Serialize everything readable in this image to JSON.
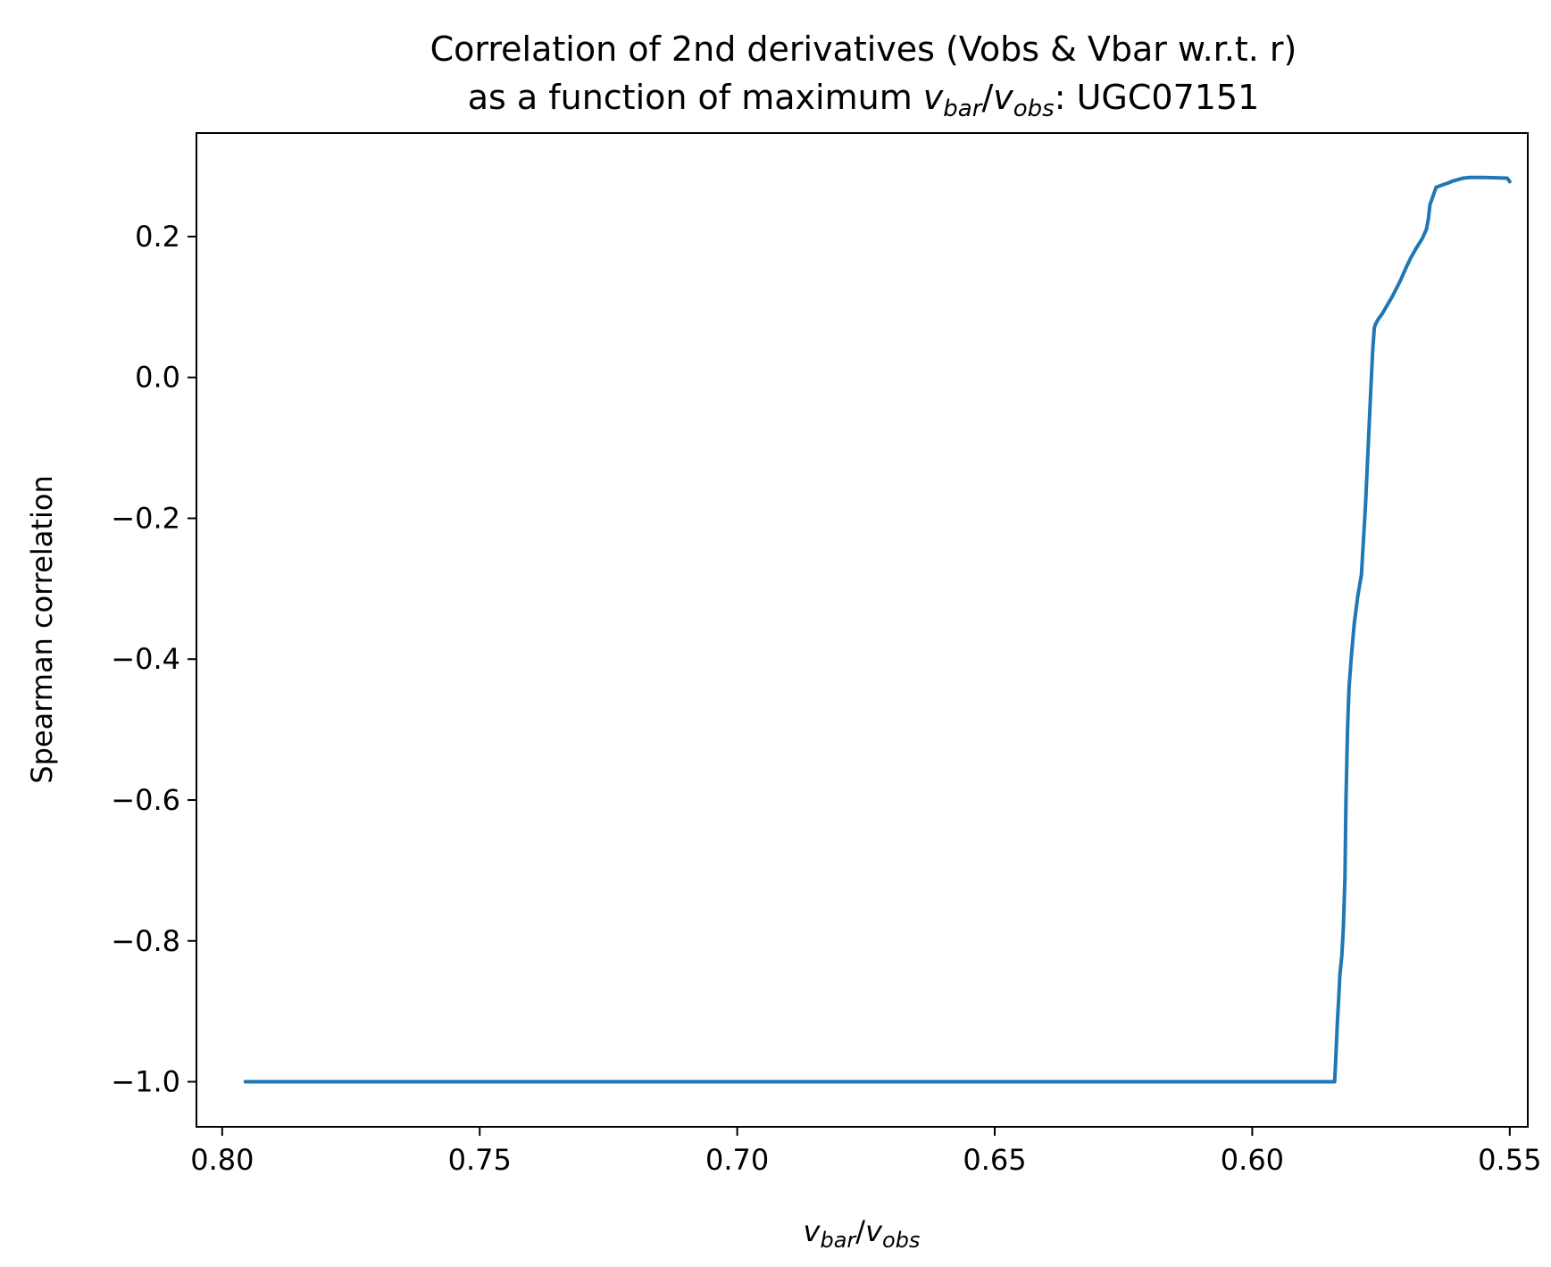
{
  "chart_data": {
    "type": "line",
    "title_line1": "Correlation of 2nd derivatives (Vobs & Vbar w.r.t. r)",
    "title_line2_prefix": "as a function of maximum ",
    "title_line2_suffix": ": UGC07151",
    "math_v": "v",
    "math_bar": "bar",
    "math_obs": "obs",
    "math_slash": "/",
    "xlabel": "v_bar/v_obs",
    "ylabel": "Spearman correlation",
    "x_inverted": true,
    "xlim": [
      0.805,
      0.5465
    ],
    "ylim": [
      -1.064,
      0.347
    ],
    "xticks": [
      0.8,
      0.75,
      0.7,
      0.65,
      0.6,
      0.55
    ],
    "xtick_labels": [
      "0.80",
      "0.75",
      "0.70",
      "0.65",
      "0.60",
      "0.55"
    ],
    "yticks": [
      0.2,
      0.0,
      -0.2,
      -0.4,
      -0.6,
      -0.8,
      -1.0
    ],
    "ytick_labels": [
      "0.2",
      "0.0",
      "−0.2",
      "−0.4",
      "−0.6",
      "−0.8",
      "−1.0"
    ],
    "grid": false,
    "line_color": "#1f77b4",
    "series": [
      {
        "x": [
          0.7955,
          0.584,
          0.5838,
          0.5835,
          0.5832,
          0.583,
          0.5826,
          0.5823,
          0.582,
          0.5818,
          0.5815,
          0.5812,
          0.5808,
          0.5802,
          0.5795,
          0.5788,
          0.578,
          0.5775,
          0.577,
          0.5766,
          0.5763,
          0.5761,
          0.5759,
          0.5755,
          0.5748,
          0.574,
          0.5728,
          0.5712,
          0.57,
          0.5692,
          0.5682,
          0.567,
          0.5662,
          0.5658,
          0.5655,
          0.5643,
          0.5632,
          0.562,
          0.561,
          0.56,
          0.559,
          0.5578,
          0.5565,
          0.5555,
          0.555,
          0.5505,
          0.55
        ],
        "y": [
          -1.0,
          -1.0,
          -0.97,
          -0.92,
          -0.88,
          -0.85,
          -0.82,
          -0.78,
          -0.71,
          -0.6,
          -0.5,
          -0.44,
          -0.4,
          -0.35,
          -0.31,
          -0.28,
          -0.18,
          -0.1,
          -0.02,
          0.04,
          0.07,
          0.075,
          0.078,
          0.083,
          0.09,
          0.1,
          0.115,
          0.138,
          0.158,
          0.17,
          0.183,
          0.197,
          0.21,
          0.225,
          0.245,
          0.27,
          0.273,
          0.276,
          0.279,
          0.281,
          0.283,
          0.284,
          0.284,
          0.284,
          0.284,
          0.283,
          0.278
        ]
      }
    ]
  }
}
